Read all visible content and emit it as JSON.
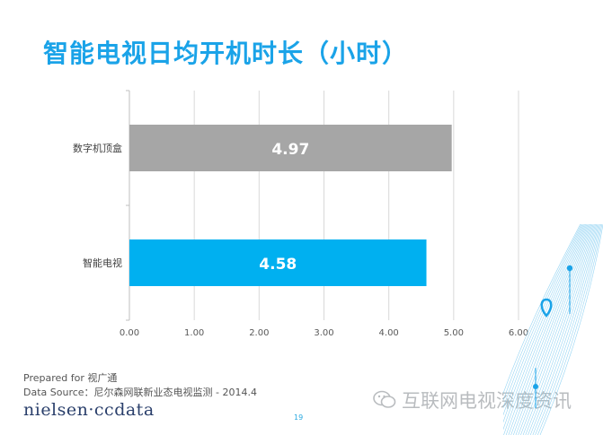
{
  "title": "智能电视日均开机时长（小时）",
  "chart_data": {
    "type": "bar",
    "orientation": "horizontal",
    "categories": [
      "数字机顶盒",
      "智能电视"
    ],
    "values": [
      4.97,
      4.58
    ],
    "data_labels": [
      "4.97",
      "4.58"
    ],
    "bar_colors": [
      "#a6a6a6",
      "#00b0f0"
    ],
    "xlim": [
      0,
      6
    ],
    "x_ticks": [
      "0.00",
      "1.00",
      "2.00",
      "3.00",
      "4.00",
      "5.00",
      "6.00"
    ],
    "grid": true
  },
  "footer": {
    "prepared": "Prepared for 视广通",
    "source": "Data Source：尼尔森网联新业态电视监测 - 2014.4",
    "logo": "nielsen·ccdata",
    "page": "19"
  },
  "watermark": "互联网电视深度资讯",
  "colors": {
    "title": "#1aa3e8",
    "accent": "#00b0f0",
    "gray_bar": "#a6a6a6"
  }
}
